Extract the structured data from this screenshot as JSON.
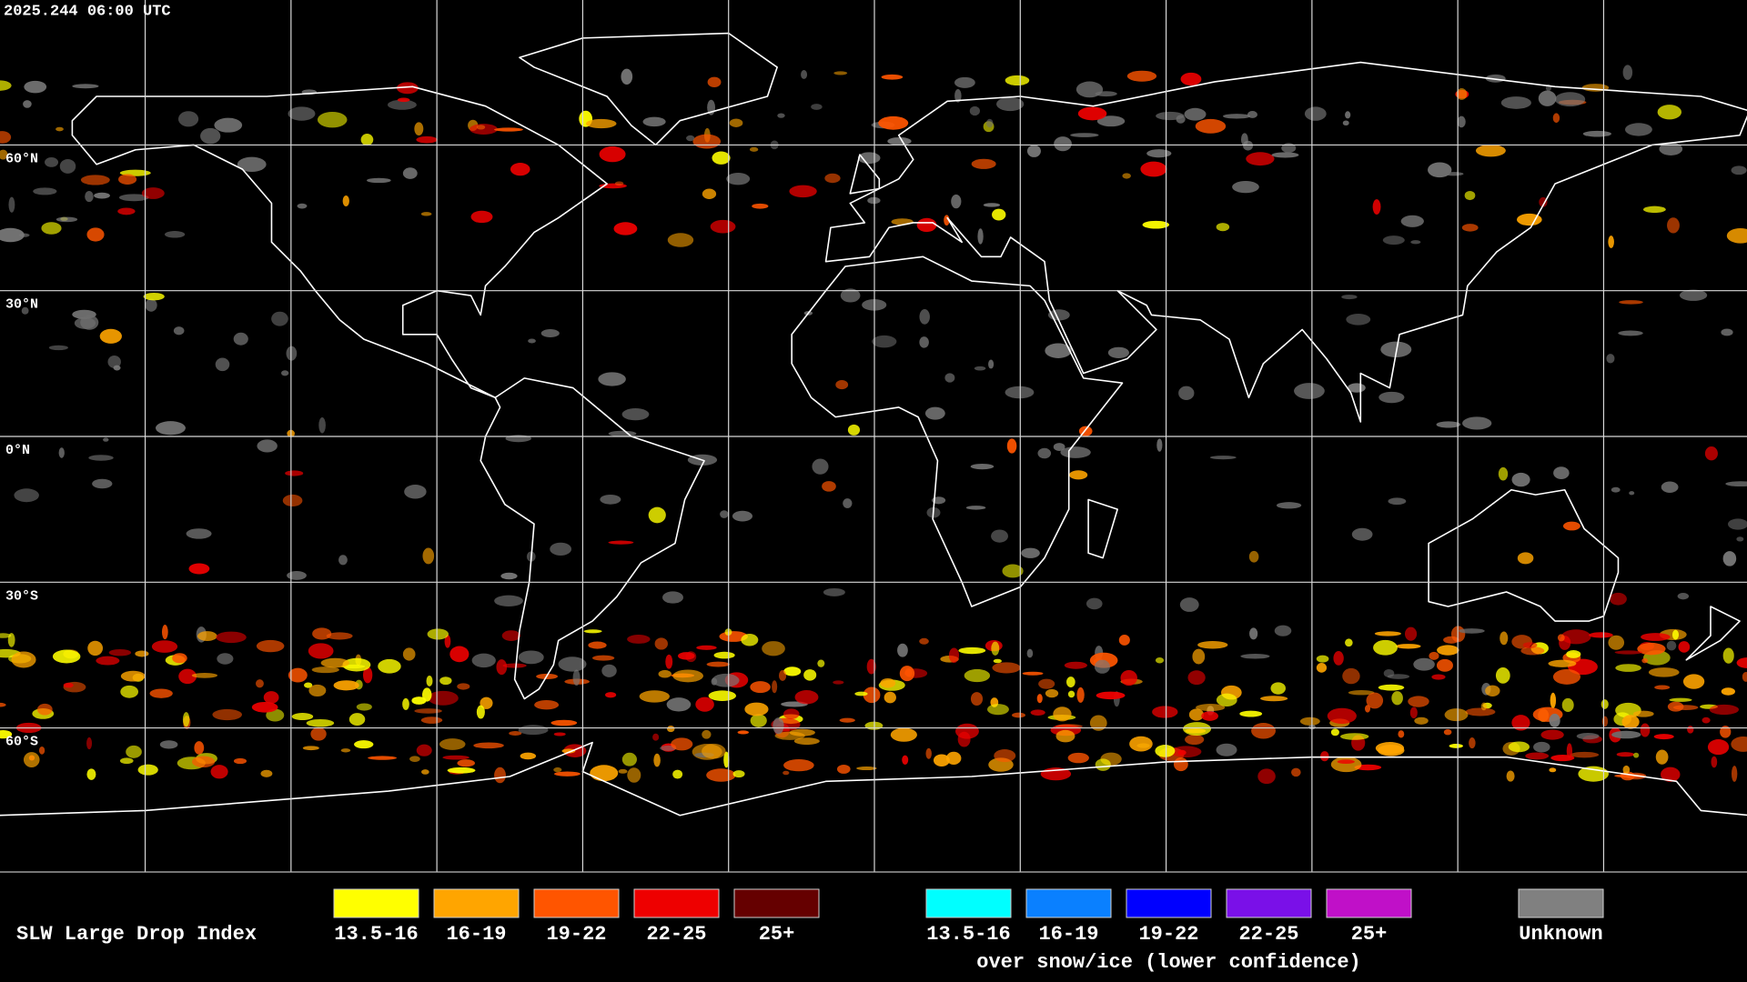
{
  "header": {
    "timestamp": "2025.244 06:00 UTC"
  },
  "map": {
    "latitude_labels": [
      "60°N",
      "30°N",
      "0°N",
      "30°S",
      "60°S"
    ]
  },
  "legend": {
    "title": "SLW Large Drop Index",
    "groups": [
      {
        "items": [
          {
            "label": "13.5-16",
            "color": "#ffff00"
          },
          {
            "label": "16-19",
            "color": "#ffa500"
          },
          {
            "label": "19-22",
            "color": "#ff5500"
          },
          {
            "label": "22-25",
            "color": "#ee0000"
          },
          {
            "label": "25+",
            "color": "#650000"
          }
        ]
      },
      {
        "items": [
          {
            "label": "13.5-16",
            "color": "#00ffff"
          },
          {
            "label": "16-19",
            "color": "#0a80ff"
          },
          {
            "label": "19-22",
            "color": "#0000ff"
          },
          {
            "label": "22-25",
            "color": "#7a10e8"
          },
          {
            "label": "25+",
            "color": "#c010c8"
          }
        ],
        "caption": "over snow/ice (lower confidence)"
      },
      {
        "items": [
          {
            "label": "Unknown",
            "color": "#808080"
          }
        ]
      }
    ]
  }
}
